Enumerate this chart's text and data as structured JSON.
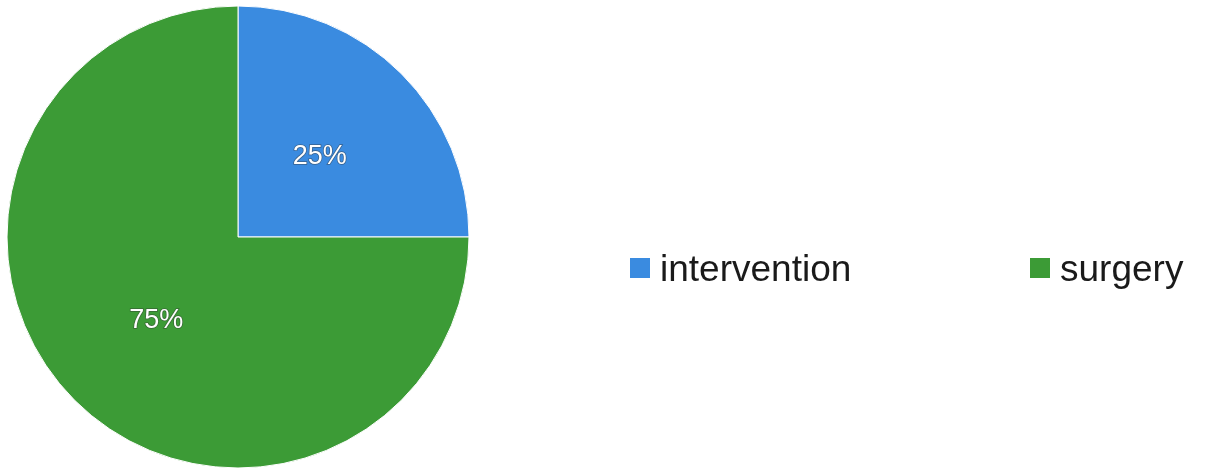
{
  "chart_data": {
    "type": "pie",
    "categories": [
      "intervention",
      "surgery"
    ],
    "values": [
      25,
      75
    ],
    "colors": [
      "#3a8be0",
      "#3c9b36"
    ],
    "value_labels": [
      "25%",
      "75%"
    ],
    "legend": "right"
  }
}
